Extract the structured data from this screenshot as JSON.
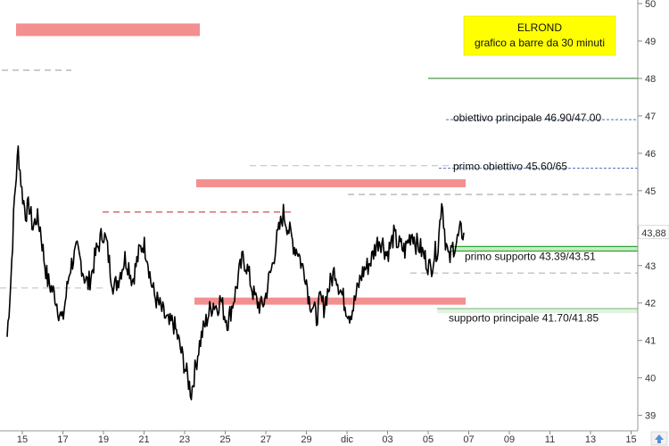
{
  "chart_data": {
    "type": "line",
    "title": "ELROND",
    "subtitle": "grafico a barre da 30 minuti",
    "ylim": [
      38.8,
      50
    ],
    "y_ticks": [
      39,
      40,
      41,
      42,
      43,
      44,
      45,
      46,
      47,
      48,
      49,
      50
    ],
    "x_tick_labels": [
      "15",
      "17",
      "19",
      "21",
      "23",
      "25",
      "27",
      "29",
      "dic",
      "03",
      "05",
      "07",
      "09",
      "11",
      "13",
      "15"
    ],
    "last_price": "43,88",
    "series": [
      {
        "values": [
          41.1,
          42.6,
          44.8,
          46.1,
          45.0,
          44.4,
          44.6,
          44.0,
          44.3,
          44.0,
          43.2,
          42.6,
          42.4,
          42.2,
          41.8,
          41.5,
          42.2,
          42.9,
          43.2,
          43.4,
          43.1,
          42.7,
          42.5,
          42.8,
          43.3,
          43.6,
          43.9,
          43.6,
          42.9,
          42.4,
          42.6,
          42.9,
          43.2,
          43.0,
          42.6,
          43.0,
          43.4,
          43.6,
          43.3,
          42.6,
          42.2,
          42.0,
          41.8,
          41.6,
          41.4,
          41.5,
          41.2,
          40.8,
          40.4,
          40.0,
          39.6,
          40.2,
          40.8,
          41.2,
          41.5,
          41.8,
          42.0,
          41.9,
          42.1,
          41.7,
          41.5,
          41.9,
          42.3,
          42.8,
          43.2,
          43.0,
          42.6,
          42.2,
          42.0,
          41.9,
          42.1,
          42.6,
          43.0,
          43.6,
          44.0,
          44.4,
          44.1,
          43.8,
          43.5,
          43.4,
          43.0,
          42.8,
          42.1,
          41.9,
          41.6,
          42.1,
          41.9,
          42.3,
          42.6,
          42.9,
          42.5,
          42.2,
          41.9,
          41.7,
          41.9,
          42.3,
          42.7,
          42.9,
          43.0,
          43.2,
          43.5,
          43.7,
          43.6,
          43.3,
          43.5,
          43.8,
          43.6,
          43.5,
          43.4,
          43.7,
          43.9,
          43.6,
          43.5,
          43.3,
          43.1,
          42.9,
          43.3,
          43.5,
          44.8,
          43.7,
          43.1,
          43.5,
          43.6,
          43.9,
          43.88
        ],
        "color": "#000000"
      }
    ],
    "levels": [
      {
        "value": 48.0,
        "color": "#1f7a1f",
        "style": "solid"
      },
      {
        "value": 46.9,
        "color": "#4a72b8",
        "style": "dashed"
      },
      {
        "value": 45.6,
        "color": "#4a72b8",
        "style": "dashed"
      },
      {
        "value": 43.51,
        "color": "#1f9a1f",
        "style": "solid"
      },
      {
        "value": 43.39,
        "color": "#1f9a1f",
        "style": "solid"
      },
      {
        "value": 41.85,
        "color": "#6aaa6a",
        "style": "solid"
      }
    ],
    "bands": [
      {
        "value": 49.3,
        "color": "#f48f8f"
      },
      {
        "value": 45.2,
        "color": "#f48f8f"
      },
      {
        "value": 42.05,
        "color": "#f48f8f"
      },
      {
        "value": 43.45,
        "color": "#c6ecc6"
      },
      {
        "value": 41.78,
        "color": "#dff3df"
      }
    ],
    "annotations": [
      {
        "text": "obiettivo principale 46.90/47.00",
        "value": 46.95
      },
      {
        "text": "primo obiettivo 45.60/65",
        "value": 45.65
      },
      {
        "text": "primo supporto 43.39/43.51",
        "value": 43.25
      },
      {
        "text": "supporto principale 41.70/41.85",
        "value": 41.6
      }
    ]
  }
}
